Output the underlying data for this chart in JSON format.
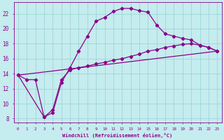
{
  "xlabel": "Windchill (Refroidissement éolien,°C)",
  "xlim": [
    -0.5,
    23.5
  ],
  "ylim": [
    7.5,
    23.5
  ],
  "xtick_values": [
    0,
    1,
    2,
    3,
    4,
    5,
    6,
    7,
    8,
    9,
    10,
    11,
    12,
    13,
    14,
    15,
    16,
    17,
    18,
    19,
    20,
    21,
    22,
    23
  ],
  "ytick_values": [
    8,
    10,
    12,
    14,
    16,
    18,
    20,
    22
  ],
  "background_color": "#c5ecee",
  "grid_color": "#9dd5d8",
  "line_color": "#8b008b",
  "curve1_x": [
    0,
    1,
    2,
    3,
    4,
    5,
    6,
    7,
    8,
    9,
    10,
    11,
    12,
    13,
    14,
    15,
    16,
    17,
    18,
    19,
    20,
    21,
    22,
    23
  ],
  "curve1_y": [
    13.8,
    13.2,
    13.2,
    8.2,
    8.8,
    12.8,
    14.8,
    17.0,
    19.0,
    21.0,
    21.5,
    22.3,
    22.7,
    22.7,
    22.4,
    22.2,
    20.5,
    19.3,
    19.0,
    18.7,
    18.5,
    17.8,
    17.5,
    17.0
  ],
  "curve2_x": [
    0,
    3,
    4,
    5,
    6,
    7,
    8,
    9,
    10,
    11,
    12,
    13,
    14,
    15,
    16,
    17,
    18,
    19,
    20,
    21,
    22,
    23
  ],
  "curve2_y": [
    13.8,
    8.2,
    9.2,
    13.2,
    14.5,
    14.8,
    15.0,
    15.3,
    15.5,
    15.8,
    16.0,
    16.3,
    16.6,
    17.0,
    17.2,
    17.5,
    17.7,
    17.9,
    18.0,
    17.8,
    17.5,
    17.0
  ],
  "curve3_x": [
    0,
    23
  ],
  "curve3_y": [
    13.8,
    17.0
  ]
}
